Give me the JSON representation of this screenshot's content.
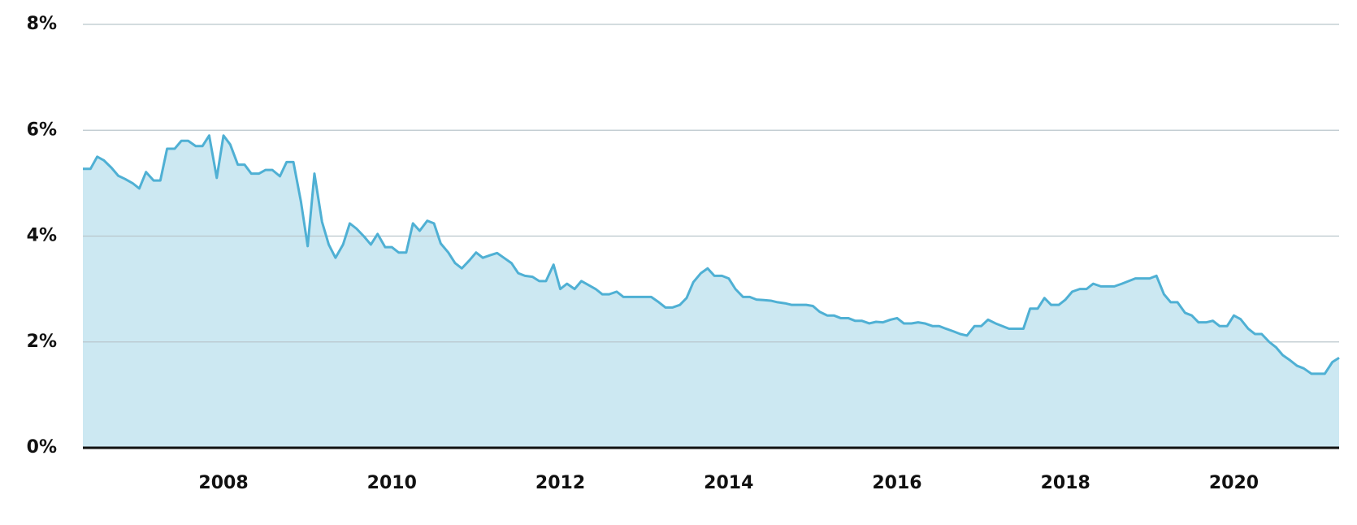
{
  "chart_data": {
    "type": "area",
    "x": [
      2006.33,
      2006.42,
      2006.5,
      2006.58,
      2006.67,
      2006.75,
      2006.83,
      2006.92,
      2007,
      2007.08,
      2007.17,
      2007.25,
      2007.33,
      2007.42,
      2007.5,
      2007.58,
      2007.67,
      2007.75,
      2007.83,
      2007.92,
      2008,
      2008.08,
      2008.17,
      2008.25,
      2008.33,
      2008.42,
      2008.5,
      2008.58,
      2008.67,
      2008.75,
      2008.83,
      2008.92,
      2009,
      2009.08,
      2009.17,
      2009.25,
      2009.33,
      2009.42,
      2009.5,
      2009.58,
      2009.67,
      2009.75,
      2009.83,
      2009.92,
      2010,
      2010.08,
      2010.17,
      2010.25,
      2010.33,
      2010.42,
      2010.5,
      2010.58,
      2010.67,
      2010.75,
      2010.83,
      2010.92,
      2011,
      2011.08,
      2011.17,
      2011.25,
      2011.33,
      2011.42,
      2011.5,
      2011.58,
      2011.67,
      2011.75,
      2011.83,
      2011.92,
      2012,
      2012.08,
      2012.17,
      2012.25,
      2012.33,
      2012.42,
      2012.5,
      2012.58,
      2012.67,
      2012.75,
      2012.83,
      2012.92,
      2013,
      2013.08,
      2013.17,
      2013.25,
      2013.33,
      2013.42,
      2013.5,
      2013.58,
      2013.67,
      2013.75,
      2013.83,
      2013.92,
      2014,
      2014.08,
      2014.17,
      2014.25,
      2014.33,
      2014.42,
      2014.5,
      2014.58,
      2014.67,
      2014.75,
      2014.83,
      2014.92,
      2015,
      2015.08,
      2015.17,
      2015.25,
      2015.33,
      2015.42,
      2015.5,
      2015.58,
      2015.67,
      2015.75,
      2015.83,
      2015.92,
      2016,
      2016.08,
      2016.17,
      2016.25,
      2016.33,
      2016.42,
      2016.5,
      2016.58,
      2016.67,
      2016.75,
      2016.83,
      2016.92,
      2017,
      2017.08,
      2017.17,
      2017.25,
      2017.33,
      2017.42,
      2017.5,
      2017.58,
      2017.67,
      2017.75,
      2017.83,
      2017.92,
      2018,
      2018.08,
      2018.17,
      2018.25,
      2018.33,
      2018.42,
      2018.5,
      2018.58,
      2018.67,
      2018.75,
      2018.83,
      2018.92,
      2019,
      2019.08,
      2019.17,
      2019.25,
      2019.33,
      2019.42,
      2019.5,
      2019.58,
      2019.67,
      2019.75,
      2019.83,
      2019.92,
      2020,
      2020.08,
      2020.17,
      2020.25,
      2020.33,
      2020.42,
      2020.5,
      2020.58,
      2020.67,
      2020.75,
      2020.83,
      2020.92,
      2021,
      2021.08,
      2021.17,
      2021.25
    ],
    "values": [
      5.27,
      5.27,
      5.5,
      5.43,
      5.29,
      5.14,
      5.08,
      5.0,
      4.9,
      5.21,
      5.05,
      5.05,
      5.65,
      5.65,
      5.8,
      5.8,
      5.7,
      5.7,
      5.9,
      5.1,
      5.9,
      5.73,
      5.35,
      5.35,
      5.18,
      5.18,
      5.25,
      5.25,
      5.13,
      5.4,
      5.4,
      4.65,
      3.81,
      5.18,
      4.27,
      3.84,
      3.59,
      3.84,
      4.24,
      4.14,
      3.99,
      3.84,
      4.04,
      3.79,
      3.79,
      3.69,
      3.69,
      4.24,
      4.1,
      4.29,
      4.24,
      3.86,
      3.69,
      3.49,
      3.39,
      3.54,
      3.69,
      3.59,
      3.64,
      3.68,
      3.59,
      3.49,
      3.3,
      3.25,
      3.23,
      3.15,
      3.15,
      3.46,
      3.0,
      3.1,
      3.0,
      3.15,
      3.08,
      3.0,
      2.9,
      2.9,
      2.95,
      2.85,
      2.85,
      2.85,
      2.85,
      2.85,
      2.75,
      2.65,
      2.65,
      2.7,
      2.83,
      3.13,
      3.3,
      3.39,
      3.25,
      3.25,
      3.2,
      3.0,
      2.85,
      2.85,
      2.8,
      2.79,
      2.78,
      2.75,
      2.73,
      2.7,
      2.7,
      2.7,
      2.68,
      2.57,
      2.5,
      2.5,
      2.45,
      2.45,
      2.4,
      2.4,
      2.35,
      2.38,
      2.37,
      2.42,
      2.45,
      2.35,
      2.35,
      2.37,
      2.35,
      2.3,
      2.3,
      2.25,
      2.2,
      2.15,
      2.12,
      2.3,
      2.3,
      2.42,
      2.35,
      2.3,
      2.25,
      2.25,
      2.25,
      2.63,
      2.63,
      2.83,
      2.7,
      2.7,
      2.8,
      2.95,
      3.0,
      3.0,
      3.1,
      3.05,
      3.05,
      3.05,
      3.1,
      3.15,
      3.2,
      3.2,
      3.2,
      3.25,
      2.9,
      2.75,
      2.75,
      2.55,
      2.5,
      2.37,
      2.37,
      2.4,
      2.3,
      2.3,
      2.5,
      2.43,
      2.25,
      2.15,
      2.15,
      2.0,
      1.9,
      1.75,
      1.65,
      1.55,
      1.5,
      1.4,
      1.4,
      1.4,
      1.62,
      1.7
    ],
    "color": "#4fb0d4",
    "fill_color": "#cce8f2",
    "xlim": [
      2006.33,
      2021.25
    ],
    "xticks": [
      2008,
      2010,
      2012,
      2014,
      2016,
      2018,
      2020
    ],
    "ylim": [
      0,
      8
    ],
    "yticks": [
      {
        "value": 0,
        "label": "0%"
      },
      {
        "value": 2,
        "label": "2%"
      },
      {
        "value": 4,
        "label": "4%"
      },
      {
        "value": 6,
        "label": "6%"
      },
      {
        "value": 8,
        "label": "8%"
      }
    ],
    "grid": true
  }
}
